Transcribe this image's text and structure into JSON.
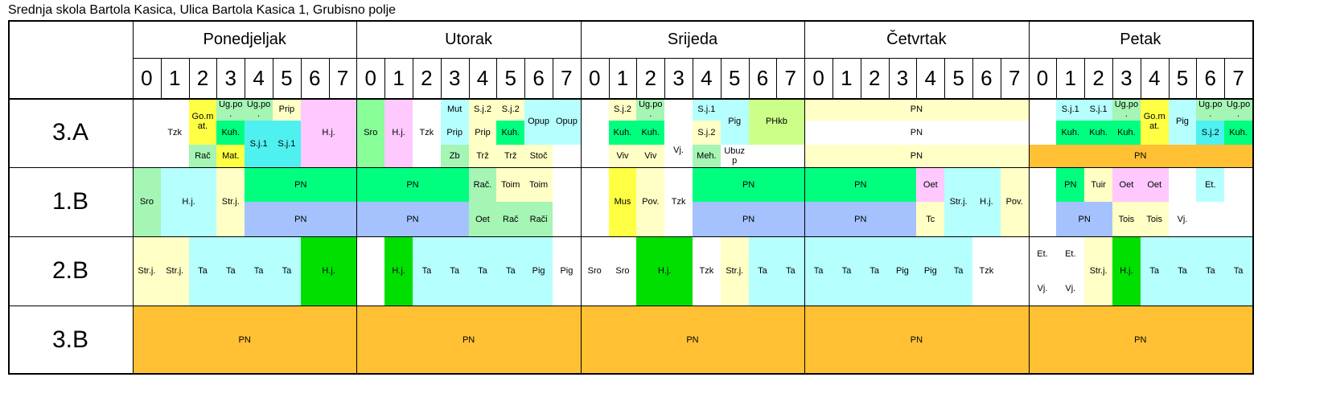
{
  "title": "Srednja skola Bartola Kasica, Ulica Bartola Kasica 1, Grubisno polje",
  "days": [
    "Ponedjeljak",
    "Utorak",
    "Srijeda",
    "Četvrtak",
    "Petak"
  ],
  "periods": [
    "0",
    "1",
    "2",
    "3",
    "4",
    "5",
    "6",
    "7"
  ],
  "classes": [
    "3.A",
    "1.B",
    "2.B",
    "3.B"
  ],
  "colors": {
    "yellow": "#ffff44",
    "green": "#00ff7f",
    "ltgreen": "#a5f5b5",
    "cyan": "#4ff0f0",
    "ltcyan": "#b5ffff",
    "pink": "#ffc8ff",
    "ltyellow": "#ffffc6",
    "orange": "#ffc033",
    "blue": "#a5c2ff",
    "bright": "#00e000",
    "lime": "#ccff88",
    "mint": "#88ff99",
    "white": "#ffffff"
  },
  "lessons": [
    {
      "text": "Tzk",
      "d": 0,
      "p": 1,
      "w": 1,
      "r": 0,
      "rh": 1,
      "c": "white"
    },
    {
      "text": "Go.m at.",
      "d": 0,
      "p": 2,
      "w": 1,
      "r": 0,
      "rh": 0.67,
      "c": "yellow"
    },
    {
      "text": "Rač",
      "d": 0,
      "p": 2,
      "w": 1,
      "r": 0.67,
      "rh": 0.33,
      "c": "ltgreen"
    },
    {
      "text": "Ug.po .",
      "d": 0,
      "p": 3,
      "w": 1,
      "r": 0,
      "rh": 0.33,
      "c": "ltgreen"
    },
    {
      "text": "Kuh.",
      "d": 0,
      "p": 3,
      "w": 1,
      "r": 0.33,
      "rh": 0.34,
      "c": "green"
    },
    {
      "text": "Mat.",
      "d": 0,
      "p": 3,
      "w": 1,
      "r": 0.67,
      "rh": 0.33,
      "c": "yellow"
    },
    {
      "text": "Ug.po .",
      "d": 0,
      "p": 4,
      "w": 1,
      "r": 0,
      "rh": 0.33,
      "c": "ltgreen"
    },
    {
      "text": "S.j.1",
      "d": 0,
      "p": 4,
      "w": 1,
      "r": 0.33,
      "rh": 0.67,
      "c": "cyan"
    },
    {
      "text": "Prip",
      "d": 0,
      "p": 5,
      "w": 1,
      "r": 0,
      "rh": 0.33,
      "c": "ltyellow"
    },
    {
      "text": "S.j.1",
      "d": 0,
      "p": 5,
      "w": 1,
      "r": 0.33,
      "rh": 0.67,
      "c": "cyan"
    },
    {
      "text": "H.j.",
      "d": 0,
      "p": 6,
      "w": 2,
      "r": 0,
      "rh": 1,
      "c": "pink"
    },
    {
      "text": "Sro",
      "d": 1,
      "p": 0,
      "w": 1,
      "r": 0,
      "rh": 1,
      "c": "mint"
    },
    {
      "text": "H.j.",
      "d": 1,
      "p": 1,
      "w": 1,
      "r": 0,
      "rh": 1,
      "c": "pink"
    },
    {
      "text": "Tzk",
      "d": 1,
      "p": 2,
      "w": 1,
      "r": 0,
      "rh": 1,
      "c": "white"
    },
    {
      "text": "Mut",
      "d": 1,
      "p": 3,
      "w": 1,
      "r": 0,
      "rh": 0.33,
      "c": "ltcyan"
    },
    {
      "text": "Prip",
      "d": 1,
      "p": 3,
      "w": 1,
      "r": 0.33,
      "rh": 0.34,
      "c": "ltcyan"
    },
    {
      "text": "Zb",
      "d": 1,
      "p": 3,
      "w": 1,
      "r": 0.67,
      "rh": 0.33,
      "c": "ltgreen"
    },
    {
      "text": "S.j.2",
      "d": 1,
      "p": 4,
      "w": 1,
      "r": 0,
      "rh": 0.33,
      "c": "ltyellow"
    },
    {
      "text": "Prip",
      "d": 1,
      "p": 4,
      "w": 1,
      "r": 0.33,
      "rh": 0.34,
      "c": "ltyellow"
    },
    {
      "text": "Trž",
      "d": 1,
      "p": 4,
      "w": 1,
      "r": 0.67,
      "rh": 0.33,
      "c": "ltyellow"
    },
    {
      "text": "S.j.2",
      "d": 1,
      "p": 5,
      "w": 1,
      "r": 0,
      "rh": 0.33,
      "c": "ltyellow"
    },
    {
      "text": "Kuh.",
      "d": 1,
      "p": 5,
      "w": 1,
      "r": 0.33,
      "rh": 0.34,
      "c": "green"
    },
    {
      "text": "Trž",
      "d": 1,
      "p": 5,
      "w": 1,
      "r": 0.67,
      "rh": 0.33,
      "c": "ltyellow"
    },
    {
      "text": "Opup",
      "d": 1,
      "p": 6,
      "w": 1,
      "r": 0,
      "rh": 0.67,
      "c": "ltcyan"
    },
    {
      "text": "Stoč",
      "d": 1,
      "p": 6,
      "w": 1,
      "r": 0.67,
      "rh": 0.33,
      "c": "ltyellow"
    },
    {
      "text": "Opup",
      "d": 1,
      "p": 7,
      "w": 1,
      "r": 0,
      "rh": 0.67,
      "c": "ltcyan"
    },
    {
      "text": "S.j.2",
      "d": 2,
      "p": 1,
      "w": 1,
      "r": 0,
      "rh": 0.33,
      "c": "ltyellow"
    },
    {
      "text": "Kuh.",
      "d": 2,
      "p": 1,
      "w": 1,
      "r": 0.33,
      "rh": 0.34,
      "c": "green"
    },
    {
      "text": "Viv",
      "d": 2,
      "p": 1,
      "w": 1,
      "r": 0.67,
      "rh": 0.33,
      "c": "ltyellow"
    },
    {
      "text": "Ug.po .",
      "d": 2,
      "p": 2,
      "w": 1,
      "r": 0,
      "rh": 0.33,
      "c": "ltgreen"
    },
    {
      "text": "Kuh.",
      "d": 2,
      "p": 2,
      "w": 1,
      "r": 0.33,
      "rh": 0.34,
      "c": "green"
    },
    {
      "text": "Viv",
      "d": 2,
      "p": 2,
      "w": 1,
      "r": 0.67,
      "rh": 0.33,
      "c": "ltyellow"
    },
    {
      "text": "Vj.",
      "d": 2,
      "p": 3,
      "w": 1,
      "r": 0.5,
      "rh": 0.5,
      "c": "white"
    },
    {
      "text": "S.j.1",
      "d": 2,
      "p": 4,
      "w": 1,
      "r": 0,
      "rh": 0.33,
      "c": "ltcyan"
    },
    {
      "text": "S.j.2",
      "d": 2,
      "p": 4,
      "w": 1,
      "r": 0.33,
      "rh": 0.34,
      "c": "ltyellow"
    },
    {
      "text": "Meh.",
      "d": 2,
      "p": 4,
      "w": 1,
      "r": 0.67,
      "rh": 0.33,
      "c": "ltgreen"
    },
    {
      "text": "Pig",
      "d": 2,
      "p": 5,
      "w": 1,
      "r": 0,
      "rh": 0.67,
      "c": "ltcyan"
    },
    {
      "text": "Ubuz p",
      "d": 2,
      "p": 5,
      "w": 1,
      "r": 0.67,
      "rh": 0.33,
      "c": "white"
    },
    {
      "text": "PHkb",
      "d": 2,
      "p": 6,
      "w": 2,
      "r": 0,
      "rh": 0.67,
      "c": "lime"
    },
    {
      "text": "PN",
      "d": 3,
      "p": 0,
      "w": 8,
      "r": 0,
      "rh": 0.33,
      "c": "ltyellow"
    },
    {
      "text": "PN",
      "d": 3,
      "p": 0,
      "w": 8,
      "r": 0.33,
      "rh": 0.34,
      "c": "white"
    },
    {
      "text": "PN",
      "d": 3,
      "p": 0,
      "w": 8,
      "r": 0.67,
      "rh": 0.33,
      "c": "ltyellow"
    },
    {
      "text": "S.j.1",
      "d": 4,
      "p": 1,
      "w": 1,
      "r": 0,
      "rh": 0.33,
      "c": "ltcyan"
    },
    {
      "text": "Kuh.",
      "d": 4,
      "p": 1,
      "w": 1,
      "r": 0.33,
      "rh": 0.34,
      "c": "green"
    },
    {
      "text": "S.j.1",
      "d": 4,
      "p": 2,
      "w": 1,
      "r": 0,
      "rh": 0.33,
      "c": "ltcyan"
    },
    {
      "text": "Kuh.",
      "d": 4,
      "p": 2,
      "w": 1,
      "r": 0.33,
      "rh": 0.34,
      "c": "green"
    },
    {
      "text": "Ug.po .",
      "d": 4,
      "p": 3,
      "w": 1,
      "r": 0,
      "rh": 0.33,
      "c": "ltgreen"
    },
    {
      "text": "Kuh.",
      "d": 4,
      "p": 3,
      "w": 1,
      "r": 0.33,
      "rh": 0.34,
      "c": "green"
    },
    {
      "text": "Go.m at.",
      "d": 4,
      "p": 4,
      "w": 1,
      "r": 0,
      "rh": 0.67,
      "c": "yellow"
    },
    {
      "text": "Pig",
      "d": 4,
      "p": 5,
      "w": 1,
      "r": 0,
      "rh": 0.67,
      "c": "ltcyan"
    },
    {
      "text": "Ug.po .",
      "d": 4,
      "p": 6,
      "w": 1,
      "r": 0,
      "rh": 0.33,
      "c": "ltgreen"
    },
    {
      "text": "S.j.2",
      "d": 4,
      "p": 6,
      "w": 1,
      "r": 0.33,
      "rh": 0.34,
      "c": "cyan"
    },
    {
      "text": "Ug.po .",
      "d": 4,
      "p": 7,
      "w": 1,
      "r": 0,
      "rh": 0.33,
      "c": "ltgreen"
    },
    {
      "text": "Kuh.",
      "d": 4,
      "p": 7,
      "w": 1,
      "r": 0.33,
      "rh": 0.34,
      "c": "green"
    },
    {
      "text": "PN",
      "d": 4,
      "p": 0,
      "w": 8,
      "r": 0.67,
      "rh": 0.33,
      "c": "orange"
    },
    {
      "text": "Sro",
      "d": 0,
      "p": 0,
      "w": 1,
      "r": 1,
      "rh": 1,
      "c": "ltgreen"
    },
    {
      "text": "H.j.",
      "d": 0,
      "p": 1,
      "w": 2,
      "r": 1,
      "rh": 1,
      "c": "ltcyan"
    },
    {
      "text": "Str.j.",
      "d": 0,
      "p": 3,
      "w": 1,
      "r": 1,
      "rh": 1,
      "c": "ltyellow"
    },
    {
      "text": "PN",
      "d": 0,
      "p": 4,
      "w": 4,
      "r": 1,
      "rh": 0.5,
      "c": "green"
    },
    {
      "text": "PN",
      "d": 0,
      "p": 4,
      "w": 4,
      "r": 1.5,
      "rh": 0.5,
      "c": "blue"
    },
    {
      "text": "PN",
      "d": 1,
      "p": 0,
      "w": 4,
      "r": 1,
      "rh": 0.5,
      "c": "green"
    },
    {
      "text": "PN",
      "d": 1,
      "p": 0,
      "w": 4,
      "r": 1.5,
      "rh": 0.5,
      "c": "blue"
    },
    {
      "text": "Rač.",
      "d": 1,
      "p": 4,
      "w": 1,
      "r": 1,
      "rh": 0.5,
      "c": "ltgreen"
    },
    {
      "text": "Oet",
      "d": 1,
      "p": 4,
      "w": 1,
      "r": 1.5,
      "rh": 0.5,
      "c": "ltgreen"
    },
    {
      "text": "Toim",
      "d": 1,
      "p": 5,
      "w": 1,
      "r": 1,
      "rh": 0.5,
      "c": "ltyellow"
    },
    {
      "text": "Rač",
      "d": 1,
      "p": 5,
      "w": 1,
      "r": 1.5,
      "rh": 0.5,
      "c": "ltgreen"
    },
    {
      "text": "Toim",
      "d": 1,
      "p": 6,
      "w": 1,
      "r": 1,
      "rh": 0.5,
      "c": "ltyellow"
    },
    {
      "text": "Rači",
      "d": 1,
      "p": 6,
      "w": 1,
      "r": 1.5,
      "rh": 0.5,
      "c": "ltgreen"
    },
    {
      "text": "Mus",
      "d": 2,
      "p": 1,
      "w": 1,
      "r": 1,
      "rh": 1,
      "c": "yellow"
    },
    {
      "text": "Pov.",
      "d": 2,
      "p": 2,
      "w": 1,
      "r": 1,
      "rh": 1,
      "c": "ltyellow"
    },
    {
      "text": "Tzk",
      "d": 2,
      "p": 3,
      "w": 1,
      "r": 1,
      "rh": 1,
      "c": "white"
    },
    {
      "text": "PN",
      "d": 2,
      "p": 4,
      "w": 4,
      "r": 1,
      "rh": 0.5,
      "c": "green"
    },
    {
      "text": "PN",
      "d": 2,
      "p": 4,
      "w": 4,
      "r": 1.5,
      "rh": 0.5,
      "c": "blue"
    },
    {
      "text": "PN",
      "d": 3,
      "p": 0,
      "w": 4,
      "r": 1,
      "rh": 0.5,
      "c": "green"
    },
    {
      "text": "PN",
      "d": 3,
      "p": 0,
      "w": 4,
      "r": 1.5,
      "rh": 0.5,
      "c": "blue"
    },
    {
      "text": "Oet",
      "d": 3,
      "p": 4,
      "w": 1,
      "r": 1,
      "rh": 0.5,
      "c": "pink"
    },
    {
      "text": "Tc",
      "d": 3,
      "p": 4,
      "w": 1,
      "r": 1.5,
      "rh": 0.5,
      "c": "ltyellow"
    },
    {
      "text": "Str.j.",
      "d": 3,
      "p": 5,
      "w": 1,
      "r": 1,
      "rh": 1,
      "c": "ltcyan"
    },
    {
      "text": "H.j.",
      "d": 3,
      "p": 6,
      "w": 1,
      "r": 1,
      "rh": 1,
      "c": "ltcyan"
    },
    {
      "text": "Pov.",
      "d": 3,
      "p": 7,
      "w": 1,
      "r": 1,
      "rh": 1,
      "c": "ltyellow"
    },
    {
      "text": "PN",
      "d": 4,
      "p": 1,
      "w": 1,
      "r": 1,
      "rh": 0.5,
      "c": "green"
    },
    {
      "text": "Tuir",
      "d": 4,
      "p": 2,
      "w": 1,
      "r": 1,
      "rh": 0.5,
      "c": "ltyellow"
    },
    {
      "text": "Oet",
      "d": 4,
      "p": 3,
      "w": 1,
      "r": 1,
      "rh": 0.5,
      "c": "pink"
    },
    {
      "text": "Oet",
      "d": 4,
      "p": 4,
      "w": 1,
      "r": 1,
      "rh": 0.5,
      "c": "pink"
    },
    {
      "text": "Et.",
      "d": 4,
      "p": 6,
      "w": 1,
      "r": 1,
      "rh": 0.5,
      "c": "ltcyan"
    },
    {
      "text": "PN",
      "d": 4,
      "p": 1,
      "w": 2,
      "r": 1.5,
      "rh": 0.5,
      "c": "blue"
    },
    {
      "text": "Tois",
      "d": 4,
      "p": 3,
      "w": 1,
      "r": 1.5,
      "rh": 0.5,
      "c": "ltyellow"
    },
    {
      "text": "Tois",
      "d": 4,
      "p": 4,
      "w": 1,
      "r": 1.5,
      "rh": 0.5,
      "c": "ltyellow"
    },
    {
      "text": "Vj.",
      "d": 4,
      "p": 5,
      "w": 1,
      "r": 1.5,
      "rh": 0.5,
      "c": "white"
    },
    {
      "text": "Str.j.",
      "d": 0,
      "p": 0,
      "w": 1,
      "r": 2,
      "rh": 1,
      "c": "ltyellow"
    },
    {
      "text": "Str.j.",
      "d": 0,
      "p": 1,
      "w": 1,
      "r": 2,
      "rh": 1,
      "c": "ltyellow"
    },
    {
      "text": "Ta",
      "d": 0,
      "p": 2,
      "w": 1,
      "r": 2,
      "rh": 1,
      "c": "ltcyan"
    },
    {
      "text": "Ta",
      "d": 0,
      "p": 3,
      "w": 1,
      "r": 2,
      "rh": 1,
      "c": "ltcyan"
    },
    {
      "text": "Ta",
      "d": 0,
      "p": 4,
      "w": 1,
      "r": 2,
      "rh": 1,
      "c": "ltcyan"
    },
    {
      "text": "Ta",
      "d": 0,
      "p": 5,
      "w": 1,
      "r": 2,
      "rh": 1,
      "c": "ltcyan"
    },
    {
      "text": "H.j.",
      "d": 0,
      "p": 6,
      "w": 2,
      "r": 2,
      "rh": 1,
      "c": "bright"
    },
    {
      "text": "H.j.",
      "d": 1,
      "p": 1,
      "w": 1,
      "r": 2,
      "rh": 1,
      "c": "bright"
    },
    {
      "text": "Ta",
      "d": 1,
      "p": 2,
      "w": 1,
      "r": 2,
      "rh": 1,
      "c": "ltcyan"
    },
    {
      "text": "Ta",
      "d": 1,
      "p": 3,
      "w": 1,
      "r": 2,
      "rh": 1,
      "c": "ltcyan"
    },
    {
      "text": "Ta",
      "d": 1,
      "p": 4,
      "w": 1,
      "r": 2,
      "rh": 1,
      "c": "ltcyan"
    },
    {
      "text": "Ta",
      "d": 1,
      "p": 5,
      "w": 1,
      "r": 2,
      "rh": 1,
      "c": "ltcyan"
    },
    {
      "text": "Pig",
      "d": 1,
      "p": 6,
      "w": 1,
      "r": 2,
      "rh": 1,
      "c": "ltcyan"
    },
    {
      "text": "Pig",
      "d": 1,
      "p": 7,
      "w": 1,
      "r": 2,
      "rh": 1,
      "c": "white"
    },
    {
      "text": "Sro",
      "d": 2,
      "p": 0,
      "w": 1,
      "r": 2,
      "rh": 1,
      "c": "white"
    },
    {
      "text": "Sro",
      "d": 2,
      "p": 1,
      "w": 1,
      "r": 2,
      "rh": 1,
      "c": "white"
    },
    {
      "text": "H.j.",
      "d": 2,
      "p": 2,
      "w": 2,
      "r": 2,
      "rh": 1,
      "c": "bright"
    },
    {
      "text": "Tzk",
      "d": 2,
      "p": 4,
      "w": 1,
      "r": 2,
      "rh": 1,
      "c": "white"
    },
    {
      "text": "Str.j.",
      "d": 2,
      "p": 5,
      "w": 1,
      "r": 2,
      "rh": 1,
      "c": "ltyellow"
    },
    {
      "text": "Ta",
      "d": 2,
      "p": 6,
      "w": 1,
      "r": 2,
      "rh": 1,
      "c": "ltcyan"
    },
    {
      "text": "Ta",
      "d": 2,
      "p": 7,
      "w": 1,
      "r": 2,
      "rh": 1,
      "c": "ltcyan"
    },
    {
      "text": "Ta",
      "d": 3,
      "p": 0,
      "w": 1,
      "r": 2,
      "rh": 1,
      "c": "ltcyan"
    },
    {
      "text": "Ta",
      "d": 3,
      "p": 1,
      "w": 1,
      "r": 2,
      "rh": 1,
      "c": "ltcyan"
    },
    {
      "text": "Ta",
      "d": 3,
      "p": 2,
      "w": 1,
      "r": 2,
      "rh": 1,
      "c": "ltcyan"
    },
    {
      "text": "Pig",
      "d": 3,
      "p": 3,
      "w": 1,
      "r": 2,
      "rh": 1,
      "c": "ltcyan"
    },
    {
      "text": "Pig",
      "d": 3,
      "p": 4,
      "w": 1,
      "r": 2,
      "rh": 1,
      "c": "ltcyan"
    },
    {
      "text": "Ta",
      "d": 3,
      "p": 5,
      "w": 1,
      "r": 2,
      "rh": 1,
      "c": "ltcyan"
    },
    {
      "text": "Tzk",
      "d": 3,
      "p": 6,
      "w": 1,
      "r": 2,
      "rh": 1,
      "c": "white"
    },
    {
      "text": "Et.",
      "d": 4,
      "p": 0,
      "w": 1,
      "r": 2,
      "rh": 0.5,
      "c": "white"
    },
    {
      "text": "Vj.",
      "d": 4,
      "p": 0,
      "w": 1,
      "r": 2.5,
      "rh": 0.5,
      "c": "white"
    },
    {
      "text": "Et.",
      "d": 4,
      "p": 1,
      "w": 1,
      "r": 2,
      "rh": 0.5,
      "c": "white"
    },
    {
      "text": "Vj.",
      "d": 4,
      "p": 1,
      "w": 1,
      "r": 2.5,
      "rh": 0.5,
      "c": "white"
    },
    {
      "text": "Str.j.",
      "d": 4,
      "p": 2,
      "w": 1,
      "r": 2,
      "rh": 1,
      "c": "ltyellow"
    },
    {
      "text": "H.j.",
      "d": 4,
      "p": 3,
      "w": 1,
      "r": 2,
      "rh": 1,
      "c": "bright"
    },
    {
      "text": "Ta",
      "d": 4,
      "p": 4,
      "w": 1,
      "r": 2,
      "rh": 1,
      "c": "ltcyan"
    },
    {
      "text": "Ta",
      "d": 4,
      "p": 5,
      "w": 1,
      "r": 2,
      "rh": 1,
      "c": "ltcyan"
    },
    {
      "text": "Ta",
      "d": 4,
      "p": 6,
      "w": 1,
      "r": 2,
      "rh": 1,
      "c": "ltcyan"
    },
    {
      "text": "Ta",
      "d": 4,
      "p": 7,
      "w": 1,
      "r": 2,
      "rh": 1,
      "c": "ltcyan"
    },
    {
      "text": "PN",
      "d": 0,
      "p": 0,
      "w": 8,
      "r": 3,
      "rh": 1,
      "c": "orange"
    },
    {
      "text": "PN",
      "d": 1,
      "p": 0,
      "w": 8,
      "r": 3,
      "rh": 1,
      "c": "orange"
    },
    {
      "text": "PN",
      "d": 2,
      "p": 0,
      "w": 8,
      "r": 3,
      "rh": 1,
      "c": "orange"
    },
    {
      "text": "PN",
      "d": 3,
      "p": 0,
      "w": 8,
      "r": 3,
      "rh": 1,
      "c": "orange"
    },
    {
      "text": "PN",
      "d": 4,
      "p": 0,
      "w": 8,
      "r": 3,
      "rh": 1,
      "c": "orange"
    }
  ]
}
